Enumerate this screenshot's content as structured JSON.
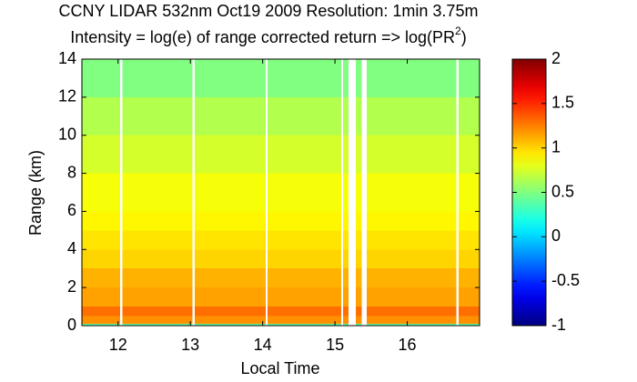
{
  "chart_data": {
    "type": "heatmap",
    "title": "CCNY LIDAR 532nm Oct19 2009 Resolution: 1min 3.75m",
    "subtitle": "Intensity = log(e) of range corrected return => log(PR",
    "subtitle_sup": "2",
    "subtitle_end": ")",
    "x_label": "Local Time",
    "y_label": "Range (km)",
    "x_edges": [
      11.5,
      12.03,
      12.06,
      13.03,
      13.06,
      14.04,
      14.07,
      15.09,
      15.11,
      15.19,
      15.29,
      15.37,
      15.44,
      16.68,
      16.71,
      17.0
    ],
    "y_edges": [
      0,
      0.1,
      0.5,
      1,
      2,
      3,
      4,
      5,
      6,
      8,
      10,
      12,
      14
    ],
    "values": [
      [
        0.4,
        null,
        0.4,
        null,
        0.4,
        null,
        0.4,
        null,
        0.4,
        null,
        0.4,
        null,
        0.4,
        null,
        0.4
      ],
      [
        1.2,
        null,
        1.2,
        null,
        1.2,
        null,
        1.2,
        null,
        1.2,
        null,
        1.2,
        null,
        1.2,
        null,
        1.2
      ],
      [
        1.3,
        null,
        1.3,
        null,
        1.3,
        null,
        1.3,
        null,
        1.3,
        null,
        1.3,
        null,
        1.3,
        null,
        1.3
      ],
      [
        1.15,
        null,
        1.15,
        null,
        1.15,
        null,
        1.15,
        null,
        1.15,
        null,
        1.15,
        null,
        1.15,
        null,
        1.15
      ],
      [
        1.1,
        null,
        1.1,
        null,
        1.1,
        null,
        1.1,
        null,
        1.1,
        null,
        1.1,
        null,
        1.1,
        null,
        1.1
      ],
      [
        1.0,
        null,
        1.0,
        null,
        1.0,
        null,
        1.0,
        null,
        1.0,
        null,
        1.0,
        null,
        1.0,
        null,
        1.0
      ],
      [
        0.95,
        null,
        0.95,
        null,
        0.95,
        null,
        0.95,
        null,
        0.95,
        null,
        0.95,
        null,
        0.95,
        null,
        0.95
      ],
      [
        0.9,
        null,
        0.9,
        null,
        0.9,
        null,
        0.9,
        null,
        0.9,
        null,
        0.9,
        null,
        0.9,
        null,
        0.9
      ],
      [
        0.85,
        null,
        0.85,
        null,
        0.85,
        null,
        0.85,
        null,
        0.85,
        null,
        0.85,
        null,
        0.85,
        null,
        0.85
      ],
      [
        0.75,
        null,
        0.75,
        null,
        0.75,
        null,
        0.75,
        null,
        0.75,
        null,
        0.75,
        null,
        0.75,
        null,
        0.75
      ],
      [
        0.65,
        null,
        0.65,
        null,
        0.65,
        null,
        0.65,
        null,
        0.65,
        null,
        0.65,
        null,
        0.65,
        null,
        0.65
      ],
      [
        0.5,
        null,
        0.5,
        null,
        0.5,
        null,
        0.5,
        null,
        0.5,
        null,
        0.5,
        null,
        0.5,
        null,
        0.5
      ]
    ],
    "xlim": [
      11.5,
      17.0
    ],
    "xticks": [
      12,
      13,
      14,
      15,
      16
    ],
    "ylim": [
      0,
      14
    ],
    "yticks": [
      0,
      2,
      4,
      6,
      8,
      10,
      12,
      14
    ],
    "colormap": "jet",
    "clim": [
      -1,
      2
    ],
    "cticks": [
      -1,
      -0.5,
      0,
      0.5,
      1,
      1.5,
      2
    ]
  }
}
